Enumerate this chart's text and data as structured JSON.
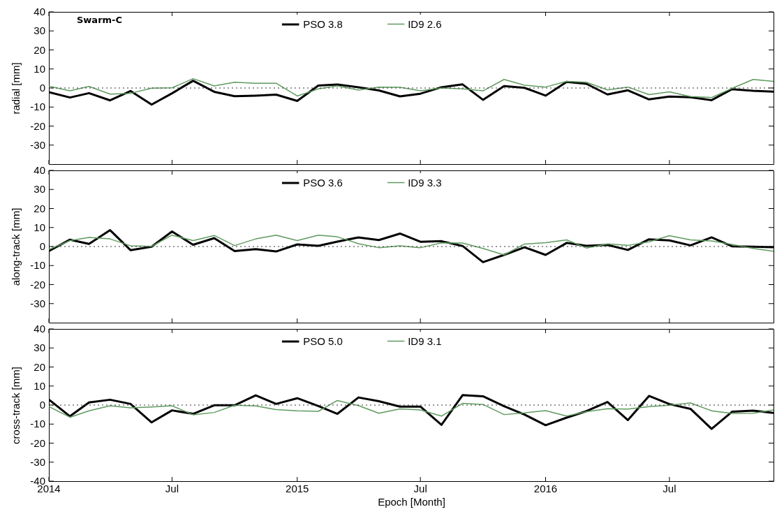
{
  "chart_data": [
    {
      "type": "line",
      "ylabel": "radial [mm]",
      "annotations": [
        "Swarm-C"
      ],
      "x": [
        "2014-01",
        "2014-02",
        "2014-03",
        "2014-04",
        "2014-05",
        "2014-06",
        "2014-07",
        "2014-08",
        "2014-09",
        "2014-10",
        "2014-11",
        "2014-12",
        "2015-01",
        "2015-02",
        "2015-03",
        "2015-04",
        "2015-05",
        "2015-06",
        "2015-07",
        "2015-08",
        "2015-09",
        "2015-10",
        "2015-11",
        "2015-12",
        "2016-01",
        "2016-02",
        "2016-03",
        "2016-04",
        "2016-05",
        "2016-06",
        "2016-07",
        "2016-08",
        "2016-09",
        "2016-10",
        "2016-11",
        "2016-12"
      ],
      "xlim": [
        "2014-01",
        "2016-12"
      ],
      "xticks": [
        {
          "value": "2014-01",
          "label": null
        },
        {
          "value": "2014-07",
          "label": null
        },
        {
          "value": "2015-01",
          "label": null
        },
        {
          "value": "2015-07",
          "label": null
        },
        {
          "value": "2016-01",
          "label": null
        },
        {
          "value": "2016-07",
          "label": null
        }
      ],
      "ylim": [
        -40,
        40
      ],
      "yticks": [
        -30,
        -20,
        -10,
        0,
        10,
        20,
        30,
        40
      ],
      "tick_labels": "y",
      "legend": "top",
      "grid": false,
      "ref_lines": [
        {
          "axis": "y",
          "value": 0,
          "color": "#333333",
          "line_style": "dotted"
        }
      ],
      "series": [
        {
          "name": "PSO 3.8",
          "color": "#000000",
          "values": [
            -2.2,
            -5,
            -2.7,
            -6.5,
            -1.6,
            -8.7,
            -2.8,
            3.8,
            -2,
            -4.3,
            -4,
            -3.5,
            -6.8,
            1.3,
            1.8,
            0.4,
            -1.3,
            -4.4,
            -3,
            0.4,
            1.9,
            -6.2,
            1,
            0.1,
            -4,
            3.2,
            2.2,
            -3.4,
            -1.2,
            -6,
            -4.5,
            -4.9,
            -6.4,
            -0.6,
            -1.5,
            -1.9
          ]
        },
        {
          "name": "ID9 2.6",
          "color": "#5f9a5f",
          "values": [
            0.9,
            -1.5,
            0.8,
            -3.2,
            -2.8,
            -0.1,
            0.1,
            4.9,
            1.1,
            3,
            2.5,
            2.5,
            -4.2,
            -0.5,
            1.1,
            -1.1,
            0.5,
            0.4,
            -1.5,
            0,
            -0.5,
            -1.5,
            4.5,
            1.5,
            0.5,
            3.5,
            3,
            -1,
            0.5,
            -3.5,
            -2,
            -4.5,
            -5,
            -0.2,
            4.5,
            3.5
          ]
        }
      ]
    },
    {
      "type": "line",
      "ylabel": "along-track [mm]",
      "x": [
        "2014-01",
        "2014-02",
        "2014-03",
        "2014-04",
        "2014-05",
        "2014-06",
        "2014-07",
        "2014-08",
        "2014-09",
        "2014-10",
        "2014-11",
        "2014-12",
        "2015-01",
        "2015-02",
        "2015-03",
        "2015-04",
        "2015-05",
        "2015-06",
        "2015-07",
        "2015-08",
        "2015-09",
        "2015-10",
        "2015-11",
        "2015-12",
        "2016-01",
        "2016-02",
        "2016-03",
        "2016-04",
        "2016-05",
        "2016-06",
        "2016-07",
        "2016-08",
        "2016-09",
        "2016-10",
        "2016-11",
        "2016-12"
      ],
      "xlim": [
        "2014-01",
        "2016-12"
      ],
      "xticks": [
        {
          "value": "2014-01",
          "label": null
        },
        {
          "value": "2014-07",
          "label": null
        },
        {
          "value": "2015-01",
          "label": null
        },
        {
          "value": "2015-07",
          "label": null
        },
        {
          "value": "2016-01",
          "label": null
        },
        {
          "value": "2016-07",
          "label": null
        }
      ],
      "ylim": [
        -40,
        40
      ],
      "yticks": [
        -30,
        -20,
        -10,
        0,
        10,
        20,
        30,
        40
      ],
      "tick_labels": "y",
      "legend": "top",
      "grid": false,
      "ref_lines": [
        {
          "axis": "y",
          "value": 0,
          "color": "#333333",
          "line_style": "dotted"
        }
      ],
      "series": [
        {
          "name": "PSO 3.6",
          "color": "#000000",
          "values": [
            -2.4,
            3.6,
            1.4,
            8.6,
            -1.9,
            -0.1,
            7.9,
            0.9,
            4.4,
            -2.4,
            -1.4,
            -2.6,
            1.1,
            0.4,
            2.6,
            4.8,
            3.4,
            6.8,
            2.5,
            2.8,
            0.3,
            -8.2,
            -4.4,
            -0.4,
            -4.4,
            1.9,
            0.4,
            0.8,
            -1.8,
            3.8,
            3.2,
            0.6,
            4.8,
            0.1,
            -0.1,
            -0.4
          ]
        },
        {
          "name": "ID9 3.3",
          "color": "#5f9a5f",
          "values": [
            -1.6,
            3.1,
            4.8,
            4,
            0.4,
            0.1,
            6,
            3.1,
            5.8,
            0.5,
            4,
            6,
            3.1,
            6,
            5.1,
            1.5,
            -0.6,
            0.4,
            -0.6,
            1.9,
            1.8,
            -1,
            -4.4,
            1.3,
            2,
            3.5,
            -0.8,
            1.4,
            0.6,
            2.5,
            5.7,
            3.5,
            2.9,
            1.1,
            -1,
            -2.5
          ]
        }
      ]
    },
    {
      "type": "line",
      "ylabel": "cross-track [mm]",
      "xlabel": "Epoch [Month]",
      "x": [
        "2014-01",
        "2014-02",
        "2014-03",
        "2014-04",
        "2014-05",
        "2014-06",
        "2014-07",
        "2014-08",
        "2014-09",
        "2014-10",
        "2014-11",
        "2014-12",
        "2015-01",
        "2015-02",
        "2015-03",
        "2015-04",
        "2015-05",
        "2015-06",
        "2015-07",
        "2015-08",
        "2015-09",
        "2015-10",
        "2015-11",
        "2015-12",
        "2016-01",
        "2016-02",
        "2016-03",
        "2016-04",
        "2016-05",
        "2016-06",
        "2016-07",
        "2016-08",
        "2016-09",
        "2016-10",
        "2016-11",
        "2016-12"
      ],
      "xlim": [
        "2014-01",
        "2016-12"
      ],
      "xticks": [
        {
          "value": "2014-01",
          "label": "2014"
        },
        {
          "value": "2014-07",
          "label": "Jul"
        },
        {
          "value": "2015-01",
          "label": "2015"
        },
        {
          "value": "2015-07",
          "label": "Jul"
        },
        {
          "value": "2016-01",
          "label": "2016"
        },
        {
          "value": "2016-07",
          "label": "Jul"
        }
      ],
      "ylim": [
        -40,
        40
      ],
      "yticks": [
        -40,
        -30,
        -20,
        -10,
        0,
        10,
        20,
        30,
        40
      ],
      "legend": "top",
      "grid": false,
      "ref_lines": [
        {
          "axis": "y",
          "value": 0,
          "color": "#333333",
          "line_style": "dotted"
        }
      ],
      "series": [
        {
          "name": "PSO 5.0",
          "color": "#000000",
          "values": [
            2.9,
            -5.9,
            1.4,
            2.8,
            0.6,
            -9.1,
            -2.8,
            -4.6,
            -0.1,
            -0.1,
            5.1,
            0.6,
            3.6,
            -0.5,
            -4.6,
            4,
            2,
            -0.8,
            -0.8,
            -10.4,
            5.2,
            4.6,
            -0.6,
            -5,
            -10.6,
            -6.6,
            -3.2,
            1.6,
            -7.9,
            4.8,
            0.5,
            -2,
            -12.5,
            -3.5,
            -2.9,
            -4.1
          ]
        },
        {
          "name": "ID9 3.1",
          "color": "#5f9a5f",
          "values": [
            -0.8,
            -6.4,
            -3,
            -0.4,
            -1.5,
            -1,
            -0.4,
            -5.1,
            -3.9,
            -0.1,
            -0.5,
            -2.4,
            -3,
            -3.3,
            2.4,
            -0.3,
            -4.3,
            -2,
            -2.6,
            -5.8,
            0.9,
            0.3,
            -5,
            -4.1,
            -2.9,
            -5.8,
            -3.5,
            -1.9,
            -2.1,
            -0.8,
            -0.1,
            1.1,
            -3,
            -4.4,
            -4.3,
            -2.6
          ]
        }
      ]
    }
  ]
}
